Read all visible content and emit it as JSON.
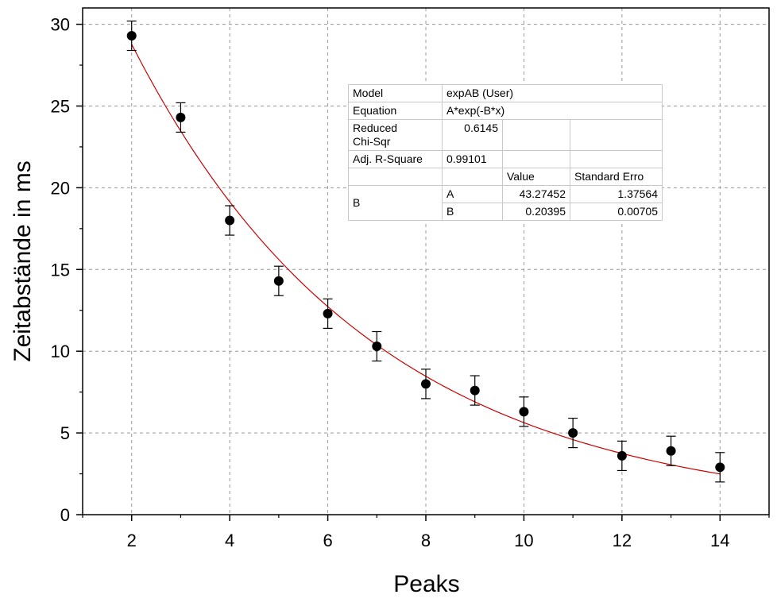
{
  "chart_data": {
    "type": "scatter",
    "xlabel": "Peaks",
    "ylabel": "Zeitabstände in ms",
    "xlim": [
      1,
      15
    ],
    "ylim": [
      0,
      31
    ],
    "xticks": [
      2,
      4,
      6,
      8,
      10,
      12,
      14
    ],
    "yticks": [
      0,
      5,
      10,
      15,
      20,
      25,
      30
    ],
    "grid": true,
    "series": [
      {
        "x": [
          2,
          3,
          4,
          5,
          6,
          7,
          8,
          9,
          10,
          11,
          12,
          13,
          14
        ],
        "y": [
          29.3,
          24.3,
          18.0,
          14.3,
          12.3,
          10.3,
          8.0,
          7.6,
          6.3,
          5.0,
          3.6,
          3.9,
          2.9
        ],
        "error": [
          0.9,
          0.9,
          0.9,
          0.9,
          0.9,
          0.9,
          0.9,
          0.9,
          0.9,
          0.9,
          0.9,
          0.9,
          0.9
        ],
        "color": "#000000"
      }
    ],
    "fit": {
      "function": "A*exp(-B*x)",
      "A": 43.27452,
      "B": 0.20395,
      "x_range": [
        2,
        14
      ],
      "color": "#cc0000"
    },
    "fit_table": {
      "model_label": "Model",
      "model_value": "expAB (User)",
      "equation_label": "Equation",
      "equation_value": "A*exp(-B*x)",
      "chisq_label_line1": "Reduced",
      "chisq_label_line2": "Chi-Sqr",
      "chisq_value": "0.6145",
      "r2_label": "Adj. R-Square",
      "r2_value": "0.99101",
      "col_value": "Value",
      "col_error": "Standard Erro",
      "group_label": "B",
      "params": [
        {
          "name": "A",
          "value": "43.27452",
          "error": "1.37564"
        },
        {
          "name": "B",
          "value": "0.20395",
          "error": "0.00705"
        }
      ]
    }
  }
}
